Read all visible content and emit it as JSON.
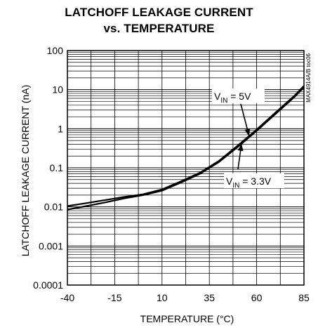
{
  "chart_data": {
    "type": "line",
    "title_line1": "LATCHOFF LEAKAGE CURRENT",
    "title_line2": "vs. TEMPERATURE",
    "xlabel": "TEMPERATURE (°C)",
    "ylabel": "LATCHOFF LEAKAGE CURRENT (nA)",
    "xlim": [
      -40,
      85
    ],
    "ylim": [
      0.0001,
      100
    ],
    "yscale": "log",
    "grid": true,
    "x_ticks": [
      -40,
      -15,
      10,
      35,
      60,
      85
    ],
    "x_tick_labels": [
      "-40",
      "-15",
      "10",
      "35",
      "60",
      "85"
    ],
    "y_ticks": [
      0.0001,
      0.001,
      0.01,
      0.1,
      1,
      10,
      100
    ],
    "y_tick_labels": [
      "0.0001",
      "0.001",
      "0.01",
      "0.1",
      "1",
      "10",
      "100"
    ],
    "series": [
      {
        "name": "VIN = 5V",
        "x": [
          -40,
          -30,
          -20,
          -10,
          0,
          10,
          20,
          30,
          40,
          50,
          60,
          70,
          80,
          85
        ],
        "y": [
          0.0105,
          0.0125,
          0.015,
          0.018,
          0.021,
          0.028,
          0.045,
          0.075,
          0.15,
          0.37,
          0.95,
          2.6,
          7.0,
          12.5
        ]
      },
      {
        "name": "VIN = 3.3V",
        "x": [
          -40,
          -30,
          -20,
          -10,
          0,
          10,
          20,
          30,
          40,
          50,
          60,
          70,
          80,
          85
        ],
        "y": [
          0.0085,
          0.0105,
          0.013,
          0.0165,
          0.02,
          0.026,
          0.042,
          0.07,
          0.14,
          0.34,
          0.88,
          2.4,
          6.5,
          11.5
        ]
      }
    ],
    "annotations": [
      {
        "label_main": "V",
        "label_sub": "IN",
        "label_rest": " = 5V",
        "series": 0
      },
      {
        "label_main": "V",
        "label_sub": "IN",
        "label_rest": " = 3.3V",
        "series": 1
      }
    ],
    "figure_code": "MAX4914A/B toc06",
    "colors": {
      "line": "#000000",
      "grid": "#000000",
      "background": "#ffffff"
    }
  }
}
